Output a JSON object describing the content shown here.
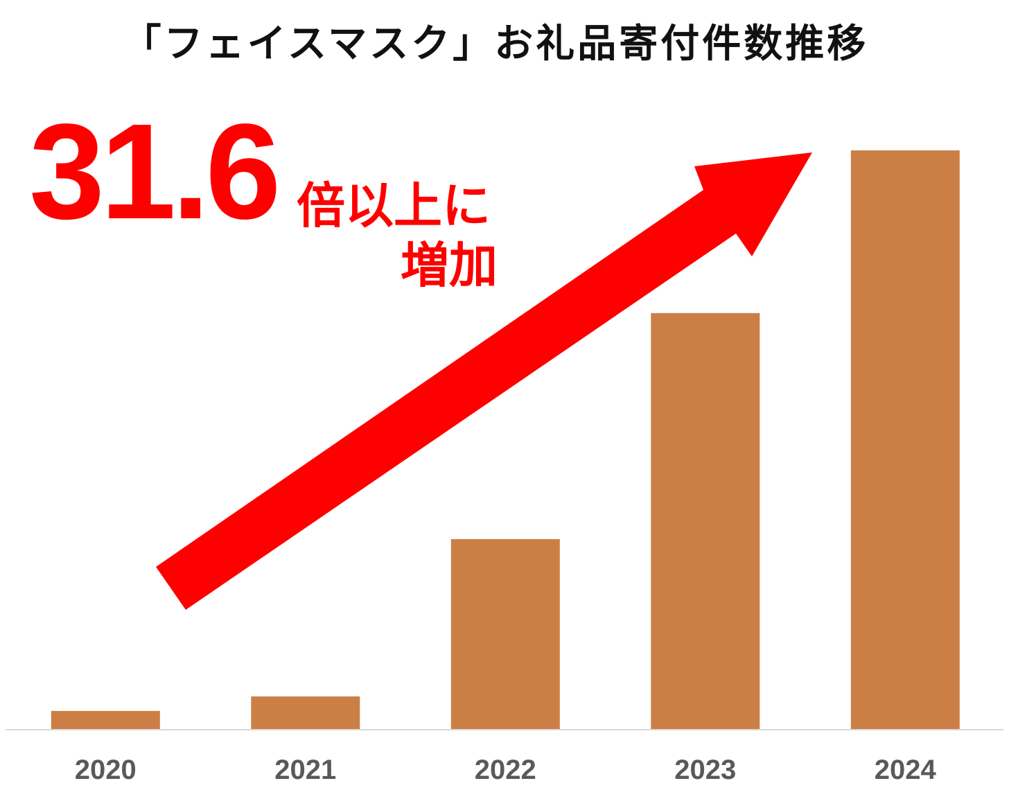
{
  "chart_data": {
    "type": "bar",
    "title": "「フェイスマスク」お礼品寄付件数推移",
    "xlabel": "",
    "ylabel": "",
    "categories": [
      "2020",
      "2021",
      "2022",
      "2023",
      "2024"
    ],
    "values": [
      1.0,
      1.8,
      10.5,
      23.0,
      32.0
    ],
    "ylim": [
      0,
      32
    ],
    "grid": false,
    "bar_color": "#cc7f45",
    "axis_color": "#d9d9d9",
    "annotation": {
      "multiplier": "31.6",
      "suffix": "倍以上に",
      "line2": "増加",
      "color": "#ff0000",
      "arrow": "up-right"
    }
  }
}
